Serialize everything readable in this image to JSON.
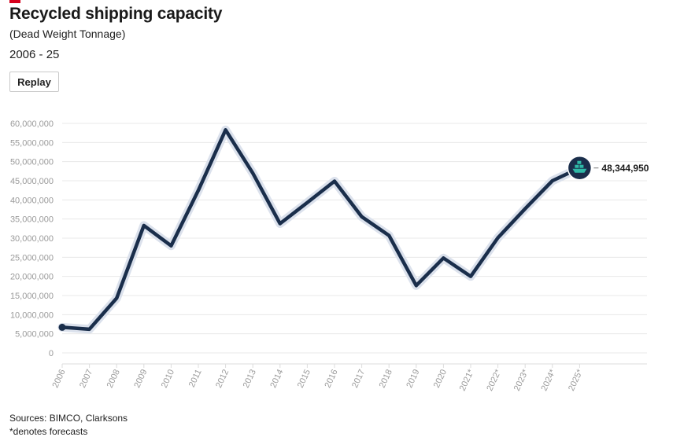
{
  "header": {
    "title": "Recycled shipping capacity",
    "subtitle": "(Dead Weight Tonnage)",
    "range": "2006 - 25"
  },
  "controls": {
    "replay_label": "Replay"
  },
  "footer": {
    "sources": "Sources: BIMCO, Clarksons",
    "note": "*denotes forecasts"
  },
  "colors": {
    "line": "#1a2e4b",
    "halo": "#dbe1ec",
    "accent": "#d6001c",
    "marker_icon": "#2fb9a7"
  },
  "icon": "ship-icon",
  "chart_data": {
    "type": "line",
    "title": "Recycled shipping capacity",
    "ylim": [
      0,
      60000000
    ],
    "y_ticks": [
      0,
      5000000,
      10000000,
      15000000,
      20000000,
      25000000,
      30000000,
      35000000,
      40000000,
      45000000,
      50000000,
      55000000,
      60000000
    ],
    "y_tick_labels": [
      "0",
      "5,000,000",
      "10,000,000",
      "15,000,000",
      "20,000,000",
      "25,000,000",
      "30,000,000",
      "35,000,000",
      "40,000,000",
      "45,000,000",
      "50,000,000",
      "55,000,000",
      "60,000,000"
    ],
    "categories": [
      "2006",
      "2007",
      "2008",
      "2009",
      "2010",
      "2011",
      "2012",
      "2013",
      "2014",
      "2015",
      "2016",
      "2017",
      "2018",
      "2019",
      "2020",
      "2021*",
      "2022*",
      "2023*",
      "2024*",
      "2025*"
    ],
    "values": [
      6700000,
      6200000,
      14300000,
      33300000,
      28000000,
      42500000,
      58300000,
      47000000,
      33800000,
      39300000,
      44900000,
      35600000,
      30700000,
      17600000,
      24800000,
      20000000,
      30100000,
      37700000,
      45000000,
      48344950
    ],
    "end_label": "48,344,950",
    "grid": true
  }
}
